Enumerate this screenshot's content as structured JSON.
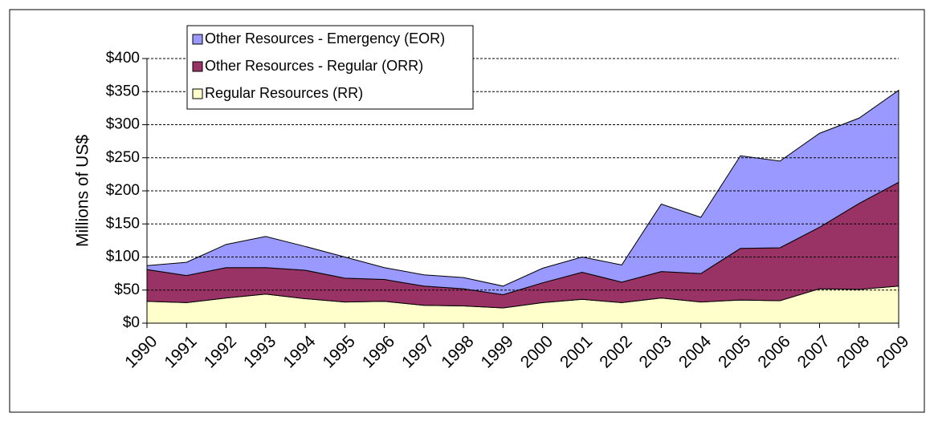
{
  "chart_data": {
    "type": "stacked_area",
    "ylabel": "Millions of US$",
    "categories": [
      "1990",
      "1991",
      "1992",
      "1993",
      "1994",
      "1995",
      "1996",
      "1997",
      "1998",
      "1999",
      "2000",
      "2001",
      "2002",
      "2003",
      "2004",
      "2005",
      "2006",
      "2007",
      "2008",
      "2009"
    ],
    "series": [
      {
        "name": "Regular Resources (RR)",
        "color": "#ffffcc",
        "values": [
          33,
          31,
          38,
          44,
          37,
          32,
          33,
          27,
          26,
          23,
          31,
          36,
          31,
          38,
          32,
          35,
          34,
          52,
          51,
          56
        ]
      },
      {
        "name": "Other Resources - Regular (ORR)",
        "color": "#993366",
        "values": [
          48,
          41,
          46,
          40,
          43,
          36,
          33,
          29,
          26,
          20,
          30,
          41,
          31,
          40,
          43,
          78,
          80,
          93,
          130,
          157
        ]
      },
      {
        "name": "Other Resources - Emergency (EOR)",
        "color": "#9999ff",
        "values": [
          6,
          20,
          35,
          47,
          36,
          32,
          18,
          17,
          17,
          13,
          22,
          23,
          26,
          102,
          85,
          140,
          131,
          142,
          129,
          139
        ]
      }
    ],
    "ylim": [
      0,
      400
    ],
    "yticks": [
      {
        "value": 0,
        "label": "$0"
      },
      {
        "value": 50,
        "label": "$50"
      },
      {
        "value": 100,
        "label": "$100"
      },
      {
        "value": 150,
        "label": "$150"
      },
      {
        "value": 200,
        "label": "$200"
      },
      {
        "value": 250,
        "label": "$250"
      },
      {
        "value": 300,
        "label": "$300"
      },
      {
        "value": 350,
        "label": "$350"
      },
      {
        "value": 400,
        "label": "$400"
      }
    ],
    "grid": true,
    "legend": "top-left"
  }
}
